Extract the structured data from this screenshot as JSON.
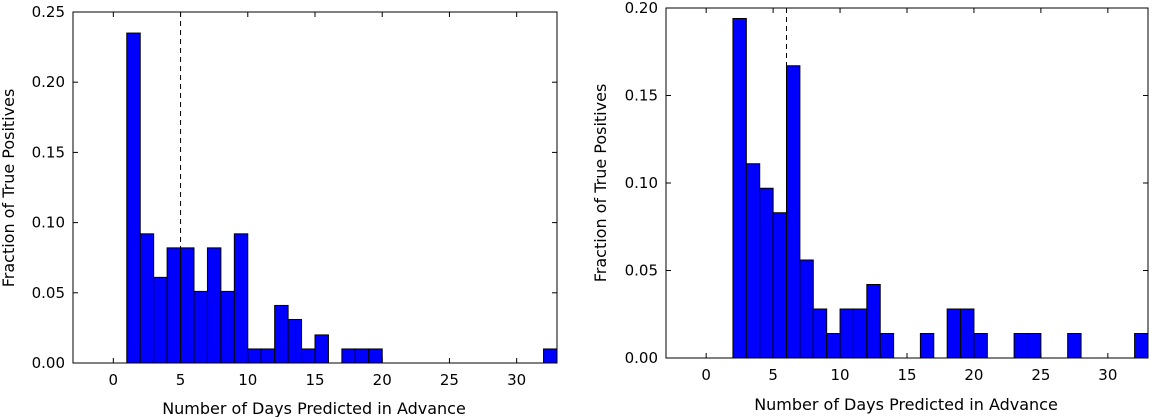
{
  "chart_data": [
    {
      "type": "bar",
      "title": "",
      "xlabel": "Number of Days Predicted in Advance",
      "ylabel": "Fraction of True Positives",
      "xlim": [
        -3,
        33
      ],
      "ylim": [
        0,
        0.25
      ],
      "xticks": [
        0,
        5,
        10,
        15,
        20,
        25,
        30
      ],
      "xtick_labels": [
        "0",
        "5",
        "10",
        "15",
        "20",
        "25",
        "30"
      ],
      "yticks": [
        0,
        0.05,
        0.1,
        0.15,
        0.2,
        0.25
      ],
      "ytick_labels": [
        "0.00",
        "0.05",
        "0.10",
        "0.15",
        "0.20",
        "0.25"
      ],
      "bin_width": 1,
      "bars": [
        {
          "x": 1,
          "value": 0.235
        },
        {
          "x": 2,
          "value": 0.092
        },
        {
          "x": 3,
          "value": 0.061
        },
        {
          "x": 4,
          "value": 0.082
        },
        {
          "x": 5,
          "value": 0.082
        },
        {
          "x": 6,
          "value": 0.051
        },
        {
          "x": 7,
          "value": 0.082
        },
        {
          "x": 8,
          "value": 0.051
        },
        {
          "x": 9,
          "value": 0.092
        },
        {
          "x": 10,
          "value": 0.01
        },
        {
          "x": 11,
          "value": 0.01
        },
        {
          "x": 12,
          "value": 0.041
        },
        {
          "x": 13,
          "value": 0.031
        },
        {
          "x": 14,
          "value": 0.01
        },
        {
          "x": 15,
          "value": 0.02
        },
        {
          "x": 17,
          "value": 0.01
        },
        {
          "x": 18,
          "value": 0.01
        },
        {
          "x": 19,
          "value": 0.01
        },
        {
          "x": 32,
          "value": 0.01
        }
      ],
      "reference_line_x": 5,
      "bar_color": "#0000ff",
      "edge_color": "#000000",
      "grid": false
    },
    {
      "type": "bar",
      "title": "",
      "xlabel": "Number of Days Predicted in Advance",
      "ylabel": "Fraction of True Positives",
      "xlim": [
        -3,
        33
      ],
      "ylim": [
        0,
        0.2
      ],
      "xticks": [
        0,
        5,
        10,
        15,
        20,
        25,
        30
      ],
      "xtick_labels": [
        "0",
        "5",
        "10",
        "15",
        "20",
        "25",
        "30"
      ],
      "yticks": [
        0,
        0.05,
        0.1,
        0.15,
        0.2
      ],
      "ytick_labels": [
        "0.00",
        "0.05",
        "0.10",
        "0.15",
        "0.20"
      ],
      "bin_width": 1,
      "bars": [
        {
          "x": 2,
          "value": 0.194
        },
        {
          "x": 3,
          "value": 0.111
        },
        {
          "x": 4,
          "value": 0.097
        },
        {
          "x": 5,
          "value": 0.083
        },
        {
          "x": 6,
          "value": 0.167
        },
        {
          "x": 7,
          "value": 0.056
        },
        {
          "x": 8,
          "value": 0.028
        },
        {
          "x": 9,
          "value": 0.014
        },
        {
          "x": 10,
          "value": 0.028
        },
        {
          "x": 11,
          "value": 0.028
        },
        {
          "x": 12,
          "value": 0.042
        },
        {
          "x": 13,
          "value": 0.014
        },
        {
          "x": 16,
          "value": 0.014
        },
        {
          "x": 18,
          "value": 0.028
        },
        {
          "x": 19,
          "value": 0.028
        },
        {
          "x": 20,
          "value": 0.014
        },
        {
          "x": 23,
          "value": 0.014
        },
        {
          "x": 24,
          "value": 0.014
        },
        {
          "x": 27,
          "value": 0.014
        },
        {
          "x": 32,
          "value": 0.014
        }
      ],
      "reference_line_x": 6,
      "bar_color": "#0000ff",
      "edge_color": "#000000",
      "grid": false
    }
  ]
}
